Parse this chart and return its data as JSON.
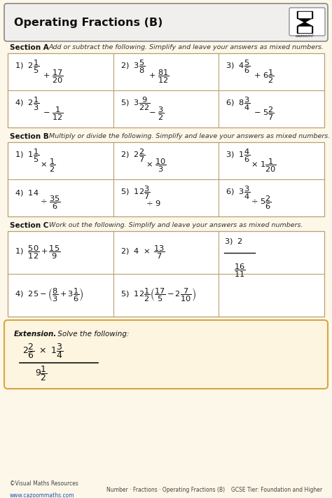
{
  "title": "Operating Fractions (B)",
  "bg_color": "#fcf7e8",
  "border_color": "#d4a843",
  "title_bg": "#efefef",
  "grid_line_color": "#b8a070",
  "section_a_label": "Section A",
  "section_a_text": "Add or subtract the following. Simplify and leave your answers as mixed numbers.",
  "section_b_label": "Section B",
  "section_b_text": "Multiply or divide the following. Simplify and leave your answers as mixed numbers.",
  "section_c_label": "Section C",
  "section_c_text": "Work out the following. Simplify and leave your answers as mixed numbers.",
  "footer_left": "©Visual Maths Resources",
  "footer_url": "www.cazoommaths.com",
  "footer_right": "GCSE Tier: Foundation and Higher",
  "footer_middle": "Number · Fractions · Operating Fractions (B)"
}
